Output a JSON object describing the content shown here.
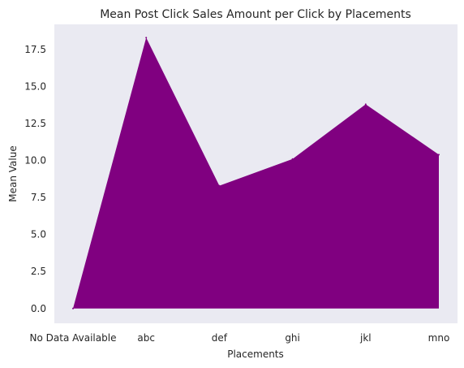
{
  "chart_data": {
    "type": "area",
    "title": "Mean Post Click Sales Amount per Click by Placements",
    "xlabel": "Placements",
    "ylabel": "Mean Value",
    "categories": [
      "No Data Available",
      "abc",
      "def",
      "ghi",
      "jkl",
      "mno"
    ],
    "values": [
      0.0,
      18.3,
      8.3,
      10.1,
      13.8,
      10.4
    ],
    "yticks": [
      "0.0",
      "2.5",
      "5.0",
      "7.5",
      "10.0",
      "12.5",
      "15.0",
      "17.5"
    ],
    "ylim": [
      -1.0,
      19.2
    ],
    "grid": false,
    "colors": {
      "fill": "#800080",
      "plot_background": "#eaeaf2"
    }
  }
}
